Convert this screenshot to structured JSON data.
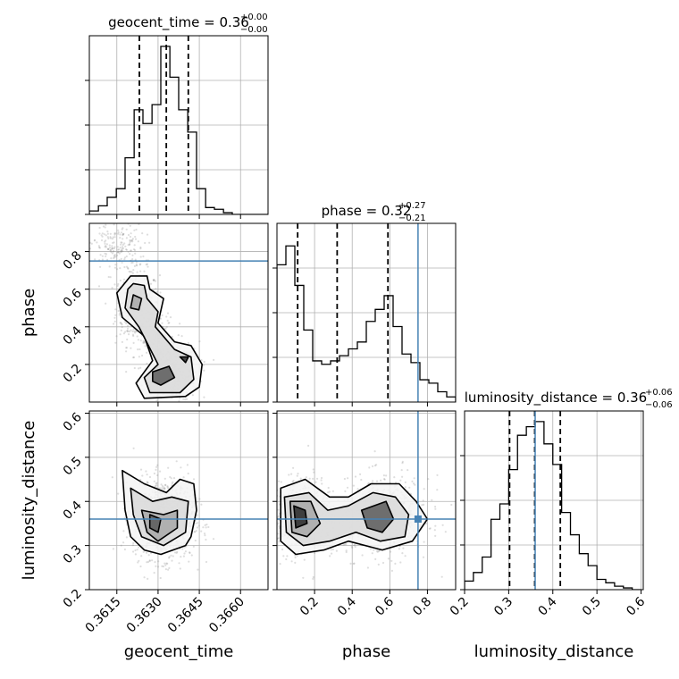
{
  "chart_data": {
    "type": "corner",
    "parameters": [
      "geocent_time",
      "phase",
      "luminosity_distance"
    ],
    "axis_labels": {
      "geocent_time": "geocent_time",
      "phase": "phase",
      "luminosity_distance": "luminosity_distance"
    },
    "titles": {
      "geocent_time": {
        "name": "geocent_time",
        "value": "0.36",
        "plus": "+0.00",
        "minus": "−0.00"
      },
      "phase": {
        "name": "phase",
        "value": "0.32",
        "plus": "+0.27",
        "minus": "−0.21"
      },
      "luminosity_distance": {
        "name": "luminosity_distance",
        "value": "0.36",
        "plus": "+0.06",
        "minus": "−0.06"
      }
    },
    "truths": {
      "phase": 0.75,
      "luminosity_distance": 0.36
    },
    "truth_color": "#4682b4",
    "ranges": {
      "geocent_time": [
        0.3605,
        0.367
      ],
      "phase": [
        0.0,
        0.95
      ],
      "luminosity_distance": [
        0.2,
        0.605
      ]
    },
    "ticks": {
      "geocent_time": {
        "values": [
          0.3615,
          0.363,
          0.3645,
          0.366
        ],
        "labels": [
          "0.3615",
          "0.3630",
          "0.3645",
          "0.3660"
        ]
      },
      "phase_x": {
        "values": [
          0.2,
          0.4,
          0.6,
          0.8
        ],
        "labels": [
          "0.2",
          "0.4",
          "0.6",
          "0.8"
        ]
      },
      "phase_y": {
        "values": [
          0.2,
          0.4,
          0.6,
          0.8
        ],
        "labels": [
          "0.2",
          "0.4",
          "0.6",
          "0.8"
        ]
      },
      "luminosity_distance": {
        "values": [
          0.2,
          0.3,
          0.4,
          0.5,
          0.6
        ],
        "labels": [
          "0.2",
          "0.3",
          "0.4",
          "0.5",
          "0.6"
        ]
      }
    },
    "hist_geocent_time": {
      "quantiles": [
        0.36232,
        0.3633,
        0.3641
      ],
      "edges": [
        0.3605,
        0.36083,
        0.36115,
        0.36148,
        0.3618,
        0.36213,
        0.36245,
        0.36278,
        0.3631,
        0.36343,
        0.36375,
        0.36408,
        0.3644,
        0.36473,
        0.36505,
        0.36538,
        0.3657,
        0.36603,
        0.36635,
        0.36668,
        0.367
      ],
      "heights": [
        0.02,
        0.05,
        0.1,
        0.15,
        0.33,
        0.61,
        0.53,
        0.64,
        0.98,
        0.8,
        0.61,
        0.48,
        0.15,
        0.04,
        0.03,
        0.01,
        0.0,
        0.0,
        0.0,
        0.0
      ]
    },
    "hist_phase": {
      "quantiles": [
        0.11,
        0.32,
        0.59
      ],
      "edges": [
        0.0,
        0.0475,
        0.095,
        0.1425,
        0.19,
        0.2375,
        0.285,
        0.3325,
        0.38,
        0.4275,
        0.475,
        0.5225,
        0.57,
        0.6175,
        0.665,
        0.7125,
        0.76,
        0.8075,
        0.855,
        0.9025,
        0.95
      ],
      "heights": [
        0.8,
        0.91,
        0.68,
        0.42,
        0.24,
        0.22,
        0.24,
        0.27,
        0.31,
        0.35,
        0.47,
        0.54,
        0.62,
        0.44,
        0.28,
        0.23,
        0.13,
        0.11,
        0.06,
        0.03
      ]
    },
    "hist_luminosity_distance": {
      "quantiles": [
        0.302,
        0.359,
        0.417
      ],
      "edges": [
        0.2,
        0.22,
        0.24,
        0.26,
        0.28,
        0.3,
        0.32,
        0.34,
        0.36,
        0.38,
        0.4,
        0.42,
        0.44,
        0.46,
        0.48,
        0.5,
        0.52,
        0.54,
        0.56,
        0.58,
        0.6
      ],
      "heights": [
        0.05,
        0.1,
        0.19,
        0.41,
        0.5,
        0.7,
        0.9,
        0.95,
        0.98,
        0.85,
        0.73,
        0.45,
        0.32,
        0.21,
        0.14,
        0.06,
        0.04,
        0.02,
        0.01,
        0.0
      ]
    },
    "scatter": {
      "geocent_time_phase": [
        {
          "x": 0.36225,
          "y": 0.5,
          "sx": 0.0004,
          "sy": 0.1,
          "w": 1.0
        },
        {
          "x": 0.3636,
          "y": 0.16,
          "sx": 0.00045,
          "sy": 0.08,
          "w": 1.2
        },
        {
          "x": 0.3615,
          "y": 0.82,
          "sx": 0.0005,
          "sy": 0.07,
          "w": 0.6
        },
        {
          "x": 0.363,
          "y": 0.32,
          "sx": 0.0003,
          "sy": 0.08,
          "w": 0.5
        }
      ],
      "geocent_time_luminosity_distance": [
        {
          "x": 0.3632,
          "y": 0.36,
          "sx": 0.00055,
          "sy": 0.045,
          "w": 1.0
        }
      ],
      "phase_luminosity_distance": [
        {
          "x": 0.13,
          "y": 0.365,
          "sx": 0.1,
          "sy": 0.045,
          "w": 1.0
        },
        {
          "x": 0.57,
          "y": 0.365,
          "sx": 0.12,
          "sy": 0.045,
          "w": 1.0
        }
      ]
    },
    "contours": {
      "geocent_time_phase": [
        [
          [
            0.362,
            0.67
          ],
          [
            0.3626,
            0.67
          ],
          [
            0.3627,
            0.6
          ],
          [
            0.3632,
            0.55
          ],
          [
            0.363,
            0.42
          ],
          [
            0.3636,
            0.32
          ],
          [
            0.3642,
            0.3
          ],
          [
            0.3646,
            0.2
          ],
          [
            0.3645,
            0.08
          ],
          [
            0.364,
            0.03
          ],
          [
            0.3625,
            0.02
          ],
          [
            0.3622,
            0.1
          ],
          [
            0.3628,
            0.22
          ],
          [
            0.3625,
            0.35
          ],
          [
            0.3617,
            0.45
          ],
          [
            0.3615,
            0.58
          ],
          [
            0.362,
            0.67
          ]
        ],
        [
          [
            0.3621,
            0.63
          ],
          [
            0.3625,
            0.62
          ],
          [
            0.3626,
            0.55
          ],
          [
            0.363,
            0.48
          ],
          [
            0.3629,
            0.4
          ],
          [
            0.3636,
            0.28
          ],
          [
            0.3642,
            0.24
          ],
          [
            0.3643,
            0.12
          ],
          [
            0.3638,
            0.05
          ],
          [
            0.3627,
            0.05
          ],
          [
            0.3625,
            0.13
          ],
          [
            0.363,
            0.2
          ],
          [
            0.3623,
            0.4
          ],
          [
            0.3618,
            0.5
          ],
          [
            0.3619,
            0.6
          ],
          [
            0.3621,
            0.63
          ]
        ],
        [
          [
            0.3621,
            0.57
          ],
          [
            0.3624,
            0.55
          ],
          [
            0.3623,
            0.49
          ],
          [
            0.362,
            0.5
          ],
          [
            0.3621,
            0.57
          ]
        ],
        [
          [
            0.3628,
            0.16
          ],
          [
            0.3634,
            0.19
          ],
          [
            0.3636,
            0.13
          ],
          [
            0.3631,
            0.09
          ],
          [
            0.3628,
            0.11
          ],
          [
            0.3628,
            0.16
          ]
        ],
        [
          [
            0.3638,
            0.24
          ],
          [
            0.3641,
            0.24
          ],
          [
            0.364,
            0.21
          ],
          [
            0.3638,
            0.24
          ]
        ]
      ],
      "geocent_time_luminosity_distance": [
        [
          [
            0.3617,
            0.47
          ],
          [
            0.3625,
            0.44
          ],
          [
            0.3633,
            0.42
          ],
          [
            0.3638,
            0.45
          ],
          [
            0.3643,
            0.44
          ],
          [
            0.3644,
            0.38
          ],
          [
            0.3642,
            0.32
          ],
          [
            0.364,
            0.3
          ],
          [
            0.3631,
            0.28
          ],
          [
            0.3625,
            0.29
          ],
          [
            0.362,
            0.32
          ],
          [
            0.3618,
            0.38
          ],
          [
            0.3617,
            0.47
          ]
        ],
        [
          [
            0.362,
            0.43
          ],
          [
            0.3628,
            0.4
          ],
          [
            0.3635,
            0.41
          ],
          [
            0.3641,
            0.4
          ],
          [
            0.364,
            0.33
          ],
          [
            0.3632,
            0.3
          ],
          [
            0.3624,
            0.32
          ],
          [
            0.3621,
            0.37
          ],
          [
            0.362,
            0.43
          ]
        ],
        [
          [
            0.3624,
            0.38
          ],
          [
            0.3632,
            0.37
          ],
          [
            0.3637,
            0.38
          ],
          [
            0.3637,
            0.34
          ],
          [
            0.363,
            0.31
          ],
          [
            0.3626,
            0.33
          ],
          [
            0.3624,
            0.38
          ]
        ],
        [
          [
            0.3627,
            0.37
          ],
          [
            0.3631,
            0.36
          ],
          [
            0.363,
            0.33
          ],
          [
            0.3627,
            0.34
          ],
          [
            0.3627,
            0.37
          ]
        ]
      ],
      "phase_luminosity_distance": [
        [
          [
            0.02,
            0.43
          ],
          [
            0.15,
            0.45
          ],
          [
            0.28,
            0.41
          ],
          [
            0.38,
            0.41
          ],
          [
            0.5,
            0.44
          ],
          [
            0.65,
            0.44
          ],
          [
            0.74,
            0.4
          ],
          [
            0.8,
            0.36
          ],
          [
            0.72,
            0.31
          ],
          [
            0.56,
            0.29
          ],
          [
            0.38,
            0.31
          ],
          [
            0.25,
            0.29
          ],
          [
            0.1,
            0.28
          ],
          [
            0.02,
            0.31
          ],
          [
            0.02,
            0.43
          ]
        ],
        [
          [
            0.04,
            0.41
          ],
          [
            0.17,
            0.42
          ],
          [
            0.27,
            0.38
          ],
          [
            0.38,
            0.39
          ],
          [
            0.51,
            0.42
          ],
          [
            0.63,
            0.41
          ],
          [
            0.7,
            0.37
          ],
          [
            0.68,
            0.32
          ],
          [
            0.55,
            0.31
          ],
          [
            0.42,
            0.33
          ],
          [
            0.28,
            0.31
          ],
          [
            0.14,
            0.3
          ],
          [
            0.05,
            0.33
          ],
          [
            0.04,
            0.41
          ]
        ],
        [
          [
            0.07,
            0.4
          ],
          [
            0.18,
            0.4
          ],
          [
            0.23,
            0.35
          ],
          [
            0.16,
            0.32
          ],
          [
            0.08,
            0.33
          ],
          [
            0.07,
            0.4
          ]
        ],
        [
          [
            0.45,
            0.38
          ],
          [
            0.58,
            0.4
          ],
          [
            0.62,
            0.36
          ],
          [
            0.56,
            0.33
          ],
          [
            0.48,
            0.34
          ],
          [
            0.45,
            0.38
          ]
        ],
        [
          [
            0.09,
            0.39
          ],
          [
            0.15,
            0.38
          ],
          [
            0.16,
            0.35
          ],
          [
            0.1,
            0.34
          ],
          [
            0.09,
            0.39
          ]
        ]
      ]
    }
  }
}
